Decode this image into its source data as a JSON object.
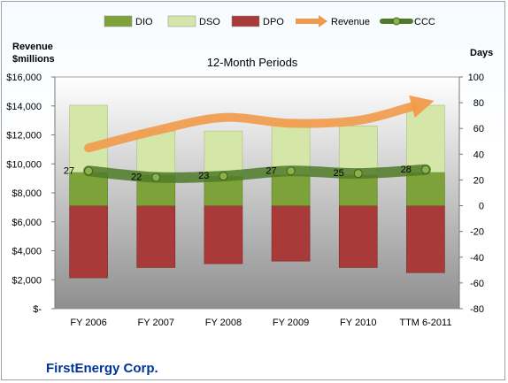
{
  "company": "FirstEnergy Corp.",
  "chart_data": {
    "type": "bar",
    "subtype": "stacked bar + line combo, dual axis",
    "title": "12-Month Periods",
    "categories": [
      "FY 2006",
      "FY 2007",
      "FY 2008",
      "FY 2009",
      "FY 2010",
      "TTM 6-2011"
    ],
    "left_axis": {
      "label": "Revenue\n$millions",
      "ylim": [
        0,
        16000
      ],
      "ticks": [
        0,
        2000,
        4000,
        6000,
        8000,
        10000,
        12000,
        14000,
        16000
      ],
      "tick_labels": [
        "$-",
        "$2,000",
        "$4,000",
        "$6,000",
        "$8,000",
        "$10,000",
        "$12,000",
        "$14,000",
        "$16,000"
      ]
    },
    "right_axis": {
      "label": "Days",
      "ylim": [
        -80,
        100
      ],
      "ticks": [
        -80,
        -60,
        -40,
        -20,
        0,
        20,
        40,
        60,
        80,
        100
      ],
      "tick_labels": [
        "-80",
        "-60",
        "-40",
        "-20",
        "0",
        "20",
        "40",
        "60",
        "80",
        "100"
      ]
    },
    "series": [
      {
        "name": "DIO",
        "type": "bar",
        "axis": "days",
        "color": "#7da23a",
        "values": [
          26,
          24,
          23,
          24,
          24,
          26
        ]
      },
      {
        "name": "DSO",
        "type": "bar",
        "axis": "days",
        "color": "#d4e6a8",
        "values": [
          52,
          34,
          35,
          40,
          38,
          52
        ]
      },
      {
        "name": "DPO",
        "type": "bar",
        "axis": "days",
        "color": "#a83a3a",
        "values": [
          -56,
          -48,
          -45,
          -43,
          -48,
          -52
        ]
      },
      {
        "name": "Revenue",
        "type": "line",
        "axis": "revenue",
        "color": "#f29a4a",
        "values": [
          11100,
          12300,
          13200,
          12800,
          13000,
          14200
        ]
      },
      {
        "name": "CCC",
        "type": "line",
        "axis": "days",
        "color": "#4f7a28",
        "values": [
          27,
          22,
          23,
          27,
          25,
          28
        ]
      }
    ],
    "data_labels": [
      "27",
      "22",
      "23",
      "27",
      "25",
      "28"
    ],
    "legend": "top",
    "grid": false,
    "plot_background": "gradient"
  }
}
